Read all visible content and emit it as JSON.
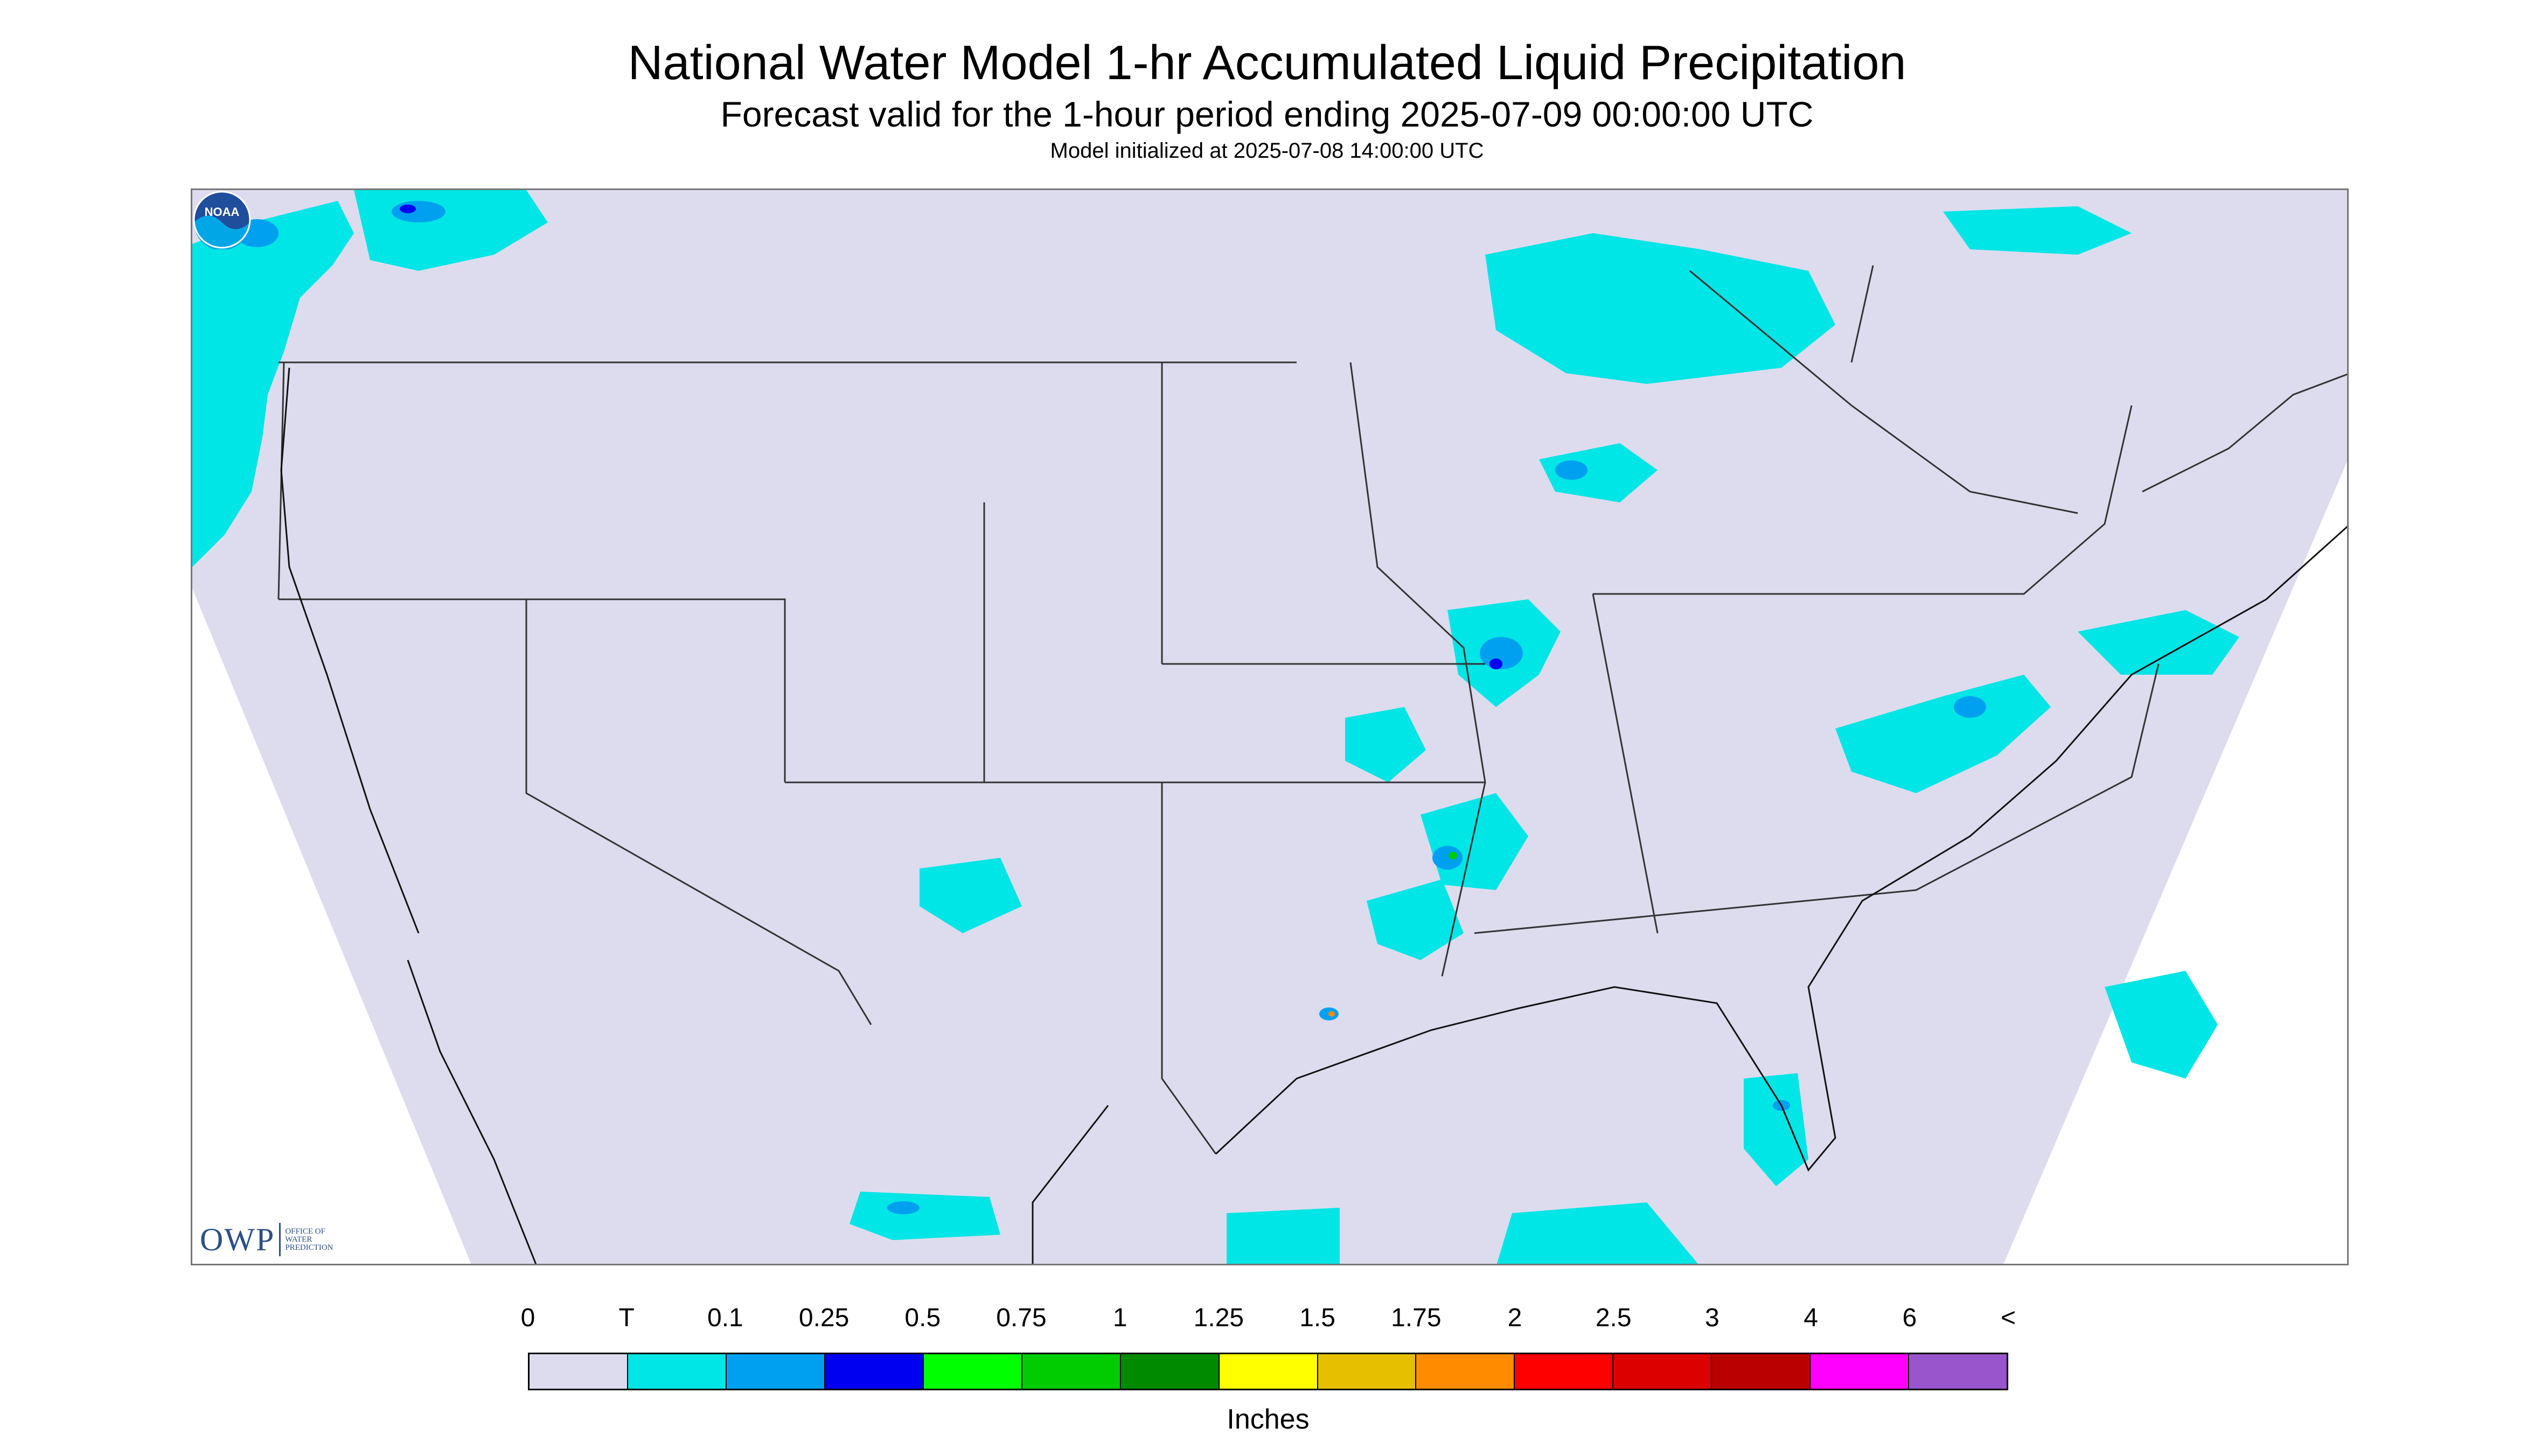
{
  "title": "National Water Model 1-hr Accumulated Liquid Precipitation",
  "subtitle": "Forecast valid for the 1-hour period ending 2025-07-09 00:00:00 UTC",
  "model_init": "Model initialized at 2025-07-08 14:00:00 UTC",
  "logos": {
    "owp": "OWP",
    "owp_full": [
      "OFFICE OF",
      "WATER",
      "PREDICTION"
    ],
    "noaa": "NOAA"
  },
  "legend": {
    "units": "Inches",
    "tick_labels": [
      "0",
      "T",
      "0.1",
      "0.25",
      "0.5",
      "0.75",
      "1",
      "1.25",
      "1.5",
      "1.75",
      "2",
      "2.5",
      "3",
      "4",
      "6",
      "<"
    ],
    "colors": [
      "#dcdcee",
      "#00e5e5",
      "#00a0f0",
      "#0000f0",
      "#00ff00",
      "#00cc00",
      "#008a00",
      "#ffff00",
      "#e6bf00",
      "#ff8c00",
      "#ff0000",
      "#dd0000",
      "#bb0000",
      "#ff00ff",
      "#9955cc"
    ]
  },
  "map": {
    "background_color": "#dcdcee",
    "outside_domain_color": "#ffffff",
    "boundary_color": "#333333"
  }
}
